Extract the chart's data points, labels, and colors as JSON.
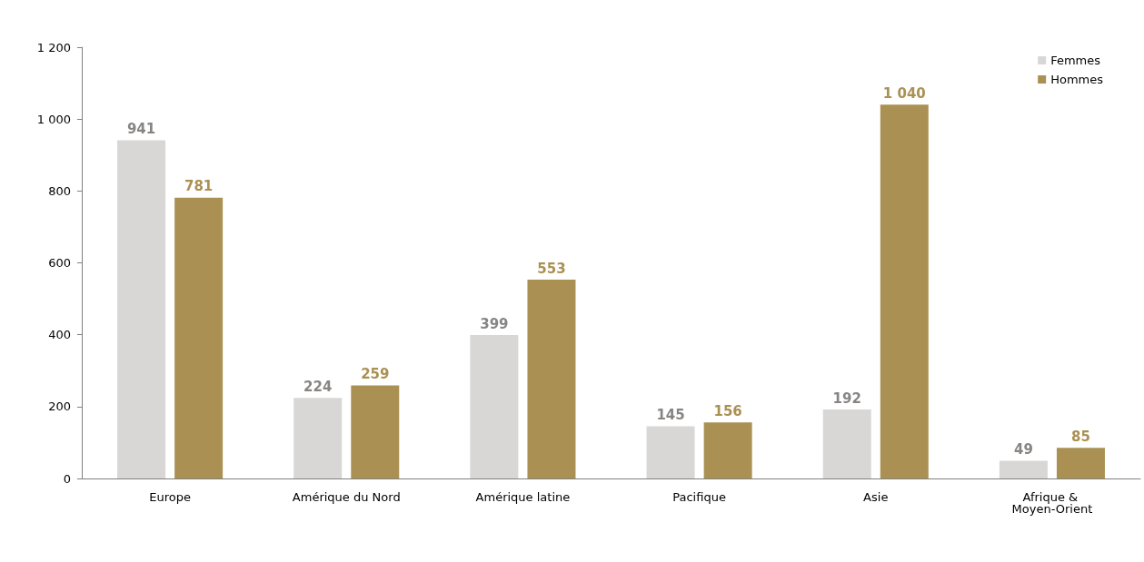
{
  "chart_data": {
    "type": "bar",
    "categories": [
      "Europe",
      "Amérique du Nord",
      "Amérique latine",
      "Pacifique",
      "Asie",
      "Afrique & Moyen-Orient"
    ],
    "series": [
      {
        "name": "Femmes",
        "color": "#d9d7d5",
        "values": [
          941,
          224,
          399,
          145,
          192,
          49
        ],
        "value_labels": [
          "941",
          "224",
          "399",
          "145",
          "192",
          "49"
        ]
      },
      {
        "name": "Hommes",
        "color": "#aa9153",
        "values": [
          781,
          259,
          553,
          156,
          1040,
          85
        ],
        "value_labels": [
          "781",
          "259",
          "553",
          "156",
          "1 040",
          "85"
        ]
      }
    ],
    "ylim": [
      0,
      1200
    ],
    "yticks": [
      0,
      200,
      400,
      600,
      800,
      {
        "value": 1000,
        "label": "1 000"
      },
      {
        "value": 1200,
        "label": "1 200"
      }
    ],
    "grid": false,
    "legend": "top right"
  }
}
